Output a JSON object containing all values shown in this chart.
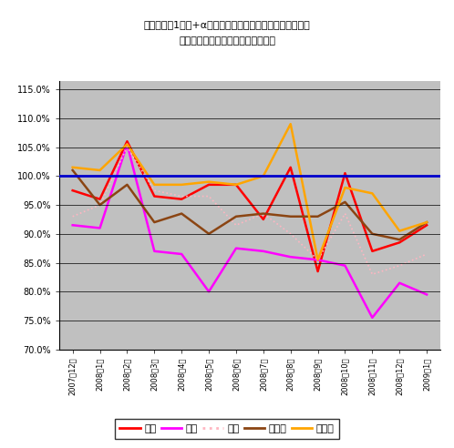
{
  "title_line1": "電通の過去1年間+αにおける業務別売上高前年同月比推移",
  "title_line2": "（全社及び四大既存メディアのみ）",
  "x_labels": [
    "2007年12月",
    "2008年1月",
    "2008年2月",
    "2008年3月",
    "2008年4月",
    "2008年5月",
    "2008年6月",
    "2008年7月",
    "2008年8月",
    "2008年9月",
    "2008年10月",
    "2008年11月",
    "2008年12月",
    "2009年1月"
  ],
  "series": {
    "全社": {
      "color": "#FF0000",
      "values": [
        97.5,
        96.0,
        106.0,
        96.5,
        96.0,
        98.5,
        98.5,
        92.5,
        101.5,
        83.5,
        100.5,
        87.0,
        88.5,
        91.5
      ],
      "linestyle": "solid",
      "linewidth": 1.8
    },
    "新聞": {
      "color": "#FF00FF",
      "values": [
        91.5,
        91.0,
        105.5,
        87.0,
        86.5,
        80.0,
        87.5,
        87.0,
        86.0,
        85.5,
        84.5,
        75.5,
        81.5,
        79.5
      ],
      "linestyle": "solid",
      "linewidth": 1.8
    },
    "雑誌": {
      "color": "#FFB6C1",
      "values": [
        93.0,
        95.0,
        105.0,
        97.5,
        96.5,
        96.5,
        91.5,
        93.5,
        90.0,
        85.5,
        93.5,
        83.0,
        84.5,
        86.5
      ],
      "linestyle": "dotted",
      "linewidth": 1.2
    },
    "ラジオ": {
      "color": "#8B4513",
      "values": [
        101.0,
        95.0,
        98.5,
        92.0,
        93.5,
        90.0,
        93.0,
        93.5,
        93.0,
        93.0,
        95.5,
        90.0,
        89.0,
        92.0
      ],
      "linestyle": "solid",
      "linewidth": 1.8
    },
    "テレビ": {
      "color": "#FFA500",
      "values": [
        101.5,
        101.0,
        105.5,
        98.5,
        98.5,
        99.0,
        98.5,
        100.0,
        109.0,
        85.5,
        98.0,
        97.0,
        90.5,
        92.0
      ],
      "linestyle": "solid",
      "linewidth": 1.8
    }
  },
  "ylim": [
    70.0,
    116.5
  ],
  "yticks": [
    70.0,
    75.0,
    80.0,
    85.0,
    90.0,
    95.0,
    100.0,
    105.0,
    110.0,
    115.0
  ],
  "hline_y": 100.0,
  "hline_color": "#0000CC",
  "plot_bg_color": "#C0C0C0",
  "grid_color": "#000000",
  "legend_order": [
    "全社",
    "新聞",
    "雑誌",
    "ラジオ",
    "テレビ"
  ]
}
